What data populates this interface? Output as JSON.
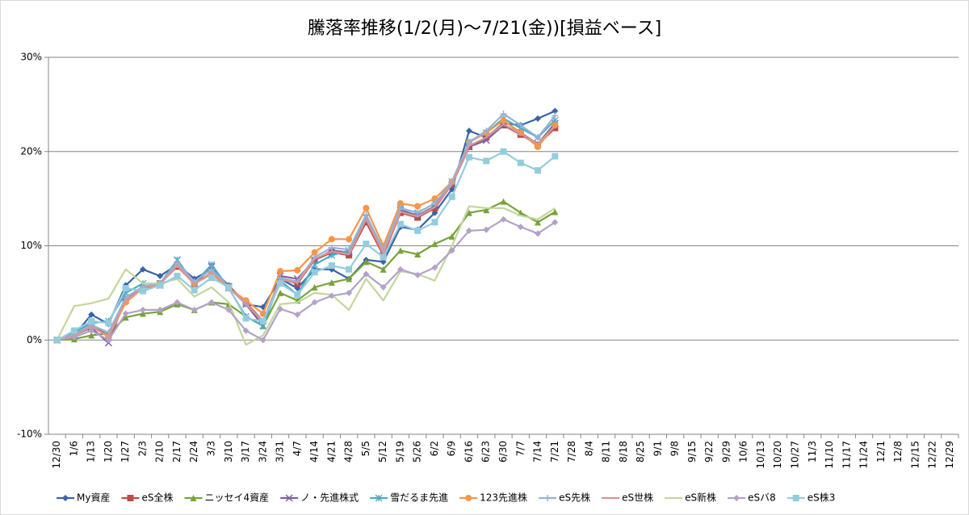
{
  "chart_data": {
    "type": "line",
    "title": "騰落率推移(1/2(月)～7/21(金))[損益ベース]",
    "categories": [
      "12/30",
      "1/6",
      "1/13",
      "1/20",
      "1/27",
      "2/3",
      "2/10",
      "2/17",
      "2/24",
      "3/3",
      "3/10",
      "3/17",
      "3/24",
      "3/31",
      "4/7",
      "4/14",
      "4/21",
      "4/28",
      "5/5",
      "5/12",
      "5/19",
      "5/26",
      "6/2",
      "6/9",
      "6/16",
      "6/23",
      "6/30",
      "7/7",
      "7/14",
      "7/21",
      "7/28",
      "8/4",
      "8/11",
      "8/18",
      "8/25",
      "9/1",
      "9/8",
      "9/15",
      "9/22",
      "9/29",
      "10/6",
      "10/13",
      "10/20",
      "10/27",
      "11/3",
      "11/10",
      "11/17",
      "11/24",
      "12/1",
      "12/8",
      "12/15",
      "12/22",
      "12/29"
    ],
    "ylim": [
      -10,
      30
    ],
    "yticks": [
      {
        "value": -10,
        "label": "-10%"
      },
      {
        "value": 0,
        "label": "0%"
      },
      {
        "value": 10,
        "label": "10%"
      },
      {
        "value": 20,
        "label": "20%"
      },
      {
        "value": 30,
        "label": "30%"
      }
    ],
    "grid": true,
    "legend": "bottom",
    "series": [
      {
        "name": "My資産",
        "color": "#3a62a7",
        "marker": "diamond",
        "values": [
          0,
          0.5,
          2.7,
          1.7,
          5.8,
          7.5,
          6.8,
          8.0,
          6.5,
          7.5,
          5.8,
          3.8,
          3.5,
          6.5,
          5.5,
          7.5,
          7.5,
          6.5,
          8.5,
          8.3,
          12.0,
          11.7,
          13.5,
          16.0,
          22.2,
          21.5,
          23.0,
          22.8,
          23.5,
          24.3,
          null,
          null,
          null,
          null,
          null,
          null,
          null,
          null,
          null,
          null,
          null,
          null,
          null,
          null,
          null,
          null,
          null,
          null,
          null,
          null,
          null,
          null,
          null
        ]
      },
      {
        "name": "eS全株",
        "color": "#be4b48",
        "marker": "square",
        "values": [
          0,
          0.5,
          1.5,
          0.5,
          4.2,
          5.5,
          6.0,
          7.8,
          6.0,
          7.0,
          5.7,
          4.0,
          2.0,
          6.5,
          6.0,
          8.5,
          9.3,
          9.0,
          12.5,
          9.0,
          13.5,
          13.0,
          14.0,
          16.5,
          20.5,
          21.5,
          22.8,
          21.8,
          20.7,
          22.5,
          null,
          null,
          null,
          null,
          null,
          null,
          null,
          null,
          null,
          null,
          null,
          null,
          null,
          null,
          null,
          null,
          null,
          null,
          null,
          null,
          null,
          null,
          null
        ]
      },
      {
        "name": "ニッセイ4資産",
        "color": "#77a33a",
        "marker": "triangle",
        "values": [
          0,
          0.1,
          0.5,
          0.7,
          2.4,
          2.8,
          3.0,
          3.8,
          3.2,
          4.0,
          3.8,
          2.5,
          1.5,
          5.0,
          4.2,
          5.6,
          6.1,
          6.5,
          8.3,
          7.5,
          9.5,
          9.1,
          10.2,
          11.0,
          13.5,
          13.8,
          14.7,
          13.5,
          12.5,
          13.6,
          null,
          null,
          null,
          null,
          null,
          null,
          null,
          null,
          null,
          null,
          null,
          null,
          null,
          null,
          null,
          null,
          null,
          null,
          null,
          null,
          null,
          null,
          null
        ]
      },
      {
        "name": "ノ・先進株式",
        "color": "#7d60a0",
        "marker": "x",
        "values": [
          0,
          0.5,
          1.3,
          -0.3,
          4.5,
          5.5,
          5.8,
          8.5,
          5.8,
          7.8,
          5.6,
          3.8,
          1.5,
          6.8,
          6.5,
          8.5,
          9.5,
          9.3,
          13.0,
          9.5,
          13.8,
          13.2,
          14.2,
          16.5,
          20.5,
          21.2,
          22.8,
          22.0,
          20.8,
          23.0,
          null,
          null,
          null,
          null,
          null,
          null,
          null,
          null,
          null,
          null,
          null,
          null,
          null,
          null,
          null,
          null,
          null,
          null,
          null,
          null,
          null,
          null,
          null
        ]
      },
      {
        "name": "雪だるま先進",
        "color": "#4bacc6",
        "marker": "asterisk",
        "values": [
          0,
          0.8,
          1.8,
          2.0,
          5.0,
          6.0,
          6.0,
          8.5,
          6.0,
          8.0,
          5.5,
          2.5,
          1.5,
          6.3,
          4.8,
          8.0,
          9.0,
          9.5,
          13.0,
          9.5,
          14.0,
          13.5,
          14.5,
          16.8,
          21.0,
          22.0,
          23.5,
          22.5,
          21.5,
          23.3,
          null,
          null,
          null,
          null,
          null,
          null,
          null,
          null,
          null,
          null,
          null,
          null,
          null,
          null,
          null,
          null,
          null,
          null,
          null,
          null,
          null,
          null,
          null
        ]
      },
      {
        "name": "123先進株",
        "color": "#f79646",
        "marker": "circle",
        "values": [
          0,
          0.5,
          1.5,
          0.3,
          4.0,
          5.5,
          6.0,
          8.0,
          6.0,
          7.0,
          5.5,
          4.2,
          2.8,
          7.3,
          7.4,
          9.3,
          10.7,
          10.7,
          14.0,
          10.0,
          14.5,
          14.2,
          15.0,
          16.8,
          21.0,
          22.0,
          23.3,
          22.0,
          20.5,
          22.8,
          null,
          null,
          null,
          null,
          null,
          null,
          null,
          null,
          null,
          null,
          null,
          null,
          null,
          null,
          null,
          null,
          null,
          null,
          null,
          null,
          null,
          null,
          null
        ]
      },
      {
        "name": "eS先株",
        "color": "#95b3d7",
        "marker": "plus",
        "values": [
          0,
          0.6,
          1.6,
          0.8,
          4.5,
          5.7,
          6.0,
          8.2,
          6.2,
          7.5,
          5.6,
          3.8,
          2.0,
          6.6,
          6.2,
          8.8,
          9.8,
          9.6,
          13.3,
          9.6,
          14.0,
          13.5,
          14.5,
          16.8,
          21.0,
          22.2,
          24.0,
          22.8,
          21.5,
          23.8,
          null,
          null,
          null,
          null,
          null,
          null,
          null,
          null,
          null,
          null,
          null,
          null,
          null,
          null,
          null,
          null,
          null,
          null,
          null,
          null,
          null,
          null,
          null
        ]
      },
      {
        "name": "eS世株",
        "color": "#d99694",
        "marker": "none",
        "values": [
          0,
          0.5,
          1.4,
          0.4,
          4.2,
          5.5,
          5.9,
          7.9,
          5.9,
          7.2,
          5.6,
          3.9,
          1.9,
          6.4,
          6.1,
          8.6,
          9.4,
          9.1,
          12.8,
          9.2,
          13.6,
          13.1,
          14.1,
          16.5,
          20.6,
          21.5,
          22.9,
          21.9,
          20.8,
          22.7,
          null,
          null,
          null,
          null,
          null,
          null,
          null,
          null,
          null,
          null,
          null,
          null,
          null,
          null,
          null,
          null,
          null,
          null,
          null,
          null,
          null,
          null,
          null
        ]
      },
      {
        "name": "eS新株",
        "color": "#c3d69b",
        "marker": "none",
        "values": [
          0,
          3.6,
          3.9,
          4.4,
          7.5,
          6.0,
          6.0,
          6.5,
          4.6,
          5.6,
          4.0,
          -0.5,
          0.5,
          3.8,
          4.0,
          5.0,
          4.8,
          3.2,
          6.5,
          4.2,
          7.3,
          7.0,
          6.3,
          10.0,
          14.2,
          14.0,
          14.0,
          13.2,
          12.8,
          14.0,
          null,
          null,
          null,
          null,
          null,
          null,
          null,
          null,
          null,
          null,
          null,
          null,
          null,
          null,
          null,
          null,
          null,
          null,
          null,
          null,
          null,
          null,
          null
        ]
      },
      {
        "name": "eSバ8",
        "color": "#b3a2c7",
        "marker": "diamond",
        "values": [
          0,
          0.3,
          1.0,
          0.0,
          2.8,
          3.2,
          3.2,
          4.0,
          3.2,
          4.0,
          3.2,
          1.0,
          0.0,
          3.3,
          2.7,
          4.0,
          4.7,
          5.0,
          7.0,
          5.6,
          7.5,
          6.9,
          7.7,
          9.5,
          11.6,
          11.7,
          12.8,
          12.0,
          11.3,
          12.5,
          null,
          null,
          null,
          null,
          null,
          null,
          null,
          null,
          null,
          null,
          null,
          null,
          null,
          null,
          null,
          null,
          null,
          null,
          null,
          null,
          null,
          null,
          null
        ]
      },
      {
        "name": "eS株3",
        "color": "#93cddd",
        "marker": "square",
        "values": [
          0,
          1.0,
          2.0,
          1.8,
          5.5,
          5.2,
          5.8,
          6.8,
          5.3,
          6.6,
          5.6,
          2.3,
          2.0,
          6.0,
          4.8,
          7.2,
          7.9,
          7.5,
          10.2,
          8.8,
          12.3,
          11.6,
          12.5,
          15.2,
          19.4,
          19.0,
          20.0,
          18.8,
          18.0,
          19.5,
          null,
          null,
          null,
          null,
          null,
          null,
          null,
          null,
          null,
          null,
          null,
          null,
          null,
          null,
          null,
          null,
          null,
          null,
          null,
          null,
          null,
          null,
          null
        ]
      }
    ]
  }
}
